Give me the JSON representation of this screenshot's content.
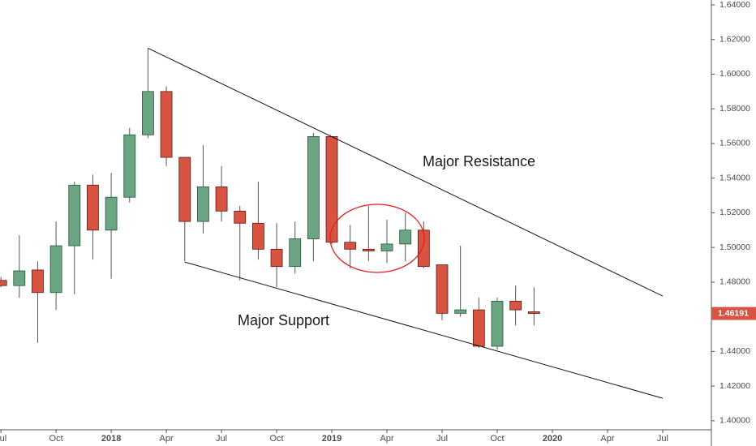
{
  "chart_data": {
    "type": "candlestick",
    "x": [
      0,
      1,
      2,
      3,
      4,
      5,
      6,
      7,
      8,
      9,
      10,
      11,
      12,
      13,
      14,
      15,
      16,
      17,
      18,
      19,
      20,
      21,
      22,
      23,
      24,
      25,
      26,
      27,
      28,
      29
    ],
    "open": [
      1.481,
      1.478,
      1.487,
      1.474,
      1.501,
      1.536,
      1.51,
      1.529,
      1.565,
      1.59,
      1.552,
      1.515,
      1.535,
      1.521,
      1.514,
      1.499,
      1.489,
      1.505,
      1.564,
      1.503,
      1.499,
      1.498,
      1.502,
      1.51,
      1.49,
      1.462,
      1.464,
      1.443,
      1.469,
      1.4629
    ],
    "high": [
      1.483,
      1.507,
      1.492,
      1.515,
      1.538,
      1.542,
      1.543,
      1.569,
      1.615,
      1.593,
      1.552,
      1.559,
      1.547,
      1.524,
      1.538,
      1.514,
      1.515,
      1.566,
      1.564,
      1.513,
      1.524,
      1.516,
      1.52,
      1.515,
      1.49,
      1.501,
      1.471,
      1.471,
      1.478,
      1.477
    ],
    "low": [
      1.477,
      1.471,
      1.445,
      1.464,
      1.473,
      1.493,
      1.482,
      1.526,
      1.563,
      1.547,
      1.492,
      1.508,
      1.515,
      1.481,
      1.493,
      1.477,
      1.485,
      1.492,
      1.502,
      1.488,
      1.492,
      1.491,
      1.492,
      1.488,
      1.458,
      1.46,
      1.442,
      1.441,
      1.455,
      1.455
    ],
    "close": [
      1.478,
      1.4865,
      1.474,
      1.501,
      1.536,
      1.51,
      1.529,
      1.565,
      1.59,
      1.552,
      1.515,
      1.535,
      1.521,
      1.514,
      1.499,
      1.489,
      1.505,
      1.564,
      1.503,
      1.499,
      1.498,
      1.502,
      1.51,
      1.489,
      1.462,
      1.464,
      1.443,
      1.469,
      1.464,
      1.46191
    ],
    "last_price_label": "1.46191",
    "up_color": "#6ba583",
    "up_border": "#225437",
    "down_color": "#d75442",
    "down_border": "#5b1a13",
    "wick_color": "#555555",
    "xlim": [
      -0.05,
      38.65
    ],
    "xticks": [
      {
        "value": 0,
        "label": "Jul"
      },
      {
        "value": 3,
        "label": "Oct"
      },
      {
        "value": 6,
        "label": "2018"
      },
      {
        "value": 9,
        "label": "Apr"
      },
      {
        "value": 12,
        "label": "Jul"
      },
      {
        "value": 15,
        "label": "Oct"
      },
      {
        "value": 18,
        "label": "2019"
      },
      {
        "value": 21,
        "label": "Apr"
      },
      {
        "value": 24,
        "label": "Jul"
      },
      {
        "value": 27,
        "label": "Oct"
      },
      {
        "value": 30,
        "label": "2020"
      },
      {
        "value": 33,
        "label": "Apr"
      },
      {
        "value": 36,
        "label": "Jul"
      }
    ],
    "ylim": [
      1.3948,
      1.6428
    ],
    "yticks": [
      {
        "value": 1.4,
        "label": "1.40000"
      },
      {
        "value": 1.42,
        "label": "1.42000"
      },
      {
        "value": 1.44,
        "label": "1.44000"
      },
      {
        "value": 1.46,
        "label": "1.46000"
      },
      {
        "value": 1.48,
        "label": "1.48000"
      },
      {
        "value": 1.5,
        "label": "1.50000"
      },
      {
        "value": 1.52,
        "label": "1.52000"
      },
      {
        "value": 1.54,
        "label": "1.54000"
      },
      {
        "value": 1.56,
        "label": "1.56000"
      },
      {
        "value": 1.58,
        "label": "1.58000"
      },
      {
        "value": 1.6,
        "label": "1.60000"
      },
      {
        "value": 1.62,
        "label": "1.62000"
      },
      {
        "value": 1.64,
        "label": "1.64000"
      }
    ],
    "trendlines": [
      {
        "label": "Major Resistance",
        "x": [
          8,
          36
        ],
        "y": [
          1.615,
          1.472
        ]
      },
      {
        "label": "Major Support",
        "x": [
          10,
          36
        ],
        "y": [
          1.4916,
          1.413
        ]
      }
    ]
  }
}
